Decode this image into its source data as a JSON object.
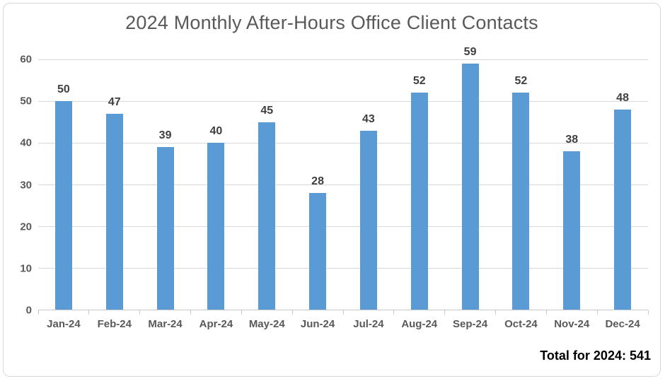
{
  "chart_data": {
    "type": "bar",
    "title": "2024 Monthly After-Hours Office Client Contacts",
    "categories": [
      "Jan-24",
      "Feb-24",
      "Mar-24",
      "Apr-24",
      "May-24",
      "Jun-24",
      "Jul-24",
      "Aug-24",
      "Sep-24",
      "Oct-24",
      "Nov-24",
      "Dec-24"
    ],
    "values": [
      50,
      47,
      39,
      40,
      45,
      28,
      43,
      52,
      59,
      52,
      38,
      48
    ],
    "xlabel": "",
    "ylabel": "",
    "ylim": [
      0,
      60
    ],
    "yticks": [
      0,
      10,
      20,
      30,
      40,
      50,
      60
    ],
    "grid": true,
    "legend_position": "none",
    "data_labels": true
  },
  "footer": {
    "total_label": "Total for 2024: 541"
  },
  "colors": {
    "bar": "#5B9BD5",
    "gridline": "#D9D9D9",
    "axis": "#C8C8C8",
    "title": "#595959",
    "axis_tick_label": "#595959",
    "data_label": "#3F3F3F",
    "total_text": "#000000",
    "frame_border": "#D9D9D9",
    "background": "#FFFFFF"
  }
}
